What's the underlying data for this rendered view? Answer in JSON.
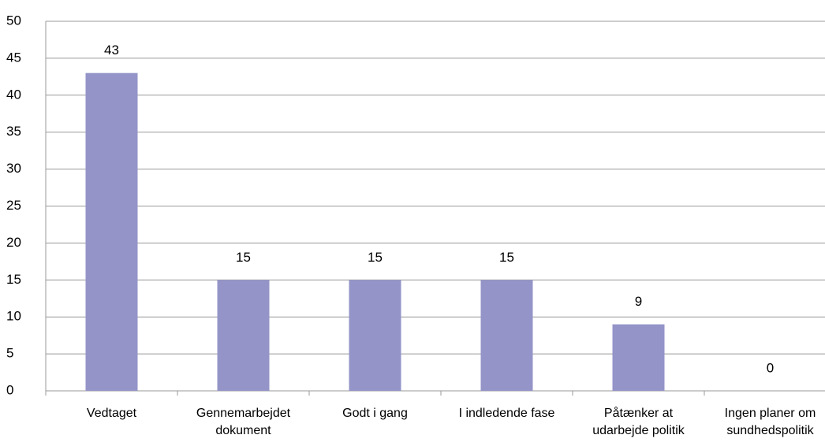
{
  "chart_data": {
    "type": "bar",
    "categories": [
      "Vedtaget",
      "Gennemarbejdet dokument",
      "Godt i gang",
      "I indledende fase",
      "Påtænker at udarbejde politik",
      "Ingen planer om sundhedspolitik"
    ],
    "values": [
      43,
      15,
      15,
      15,
      9,
      0
    ],
    "color": "#9494c8",
    "ylim": [
      0,
      50
    ],
    "yticks": [
      0,
      5,
      10,
      15,
      20,
      25,
      30,
      35,
      40,
      45,
      50
    ],
    "grid": true
  }
}
